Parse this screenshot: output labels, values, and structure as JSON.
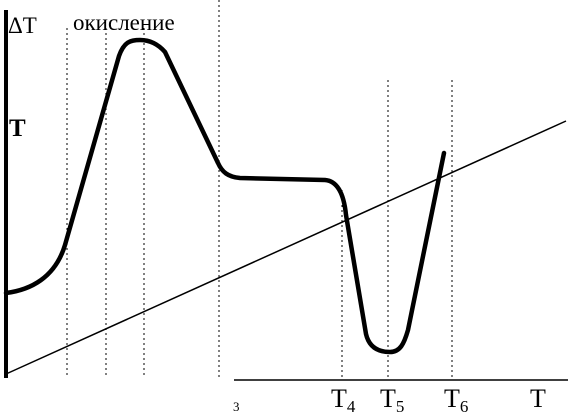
{
  "labels": {
    "delta_t": "ΔT",
    "oxidation": "окисление",
    "temperature_left": "T",
    "tick_3": "3",
    "t4_base": "T",
    "t4_sub": "4",
    "t5_base": "T",
    "t5_sub": "5",
    "t6_base": "T",
    "t6_sub": "6",
    "axis_t": "T"
  },
  "colors": {
    "ink": "#000000",
    "paper": "#ffffff"
  }
}
